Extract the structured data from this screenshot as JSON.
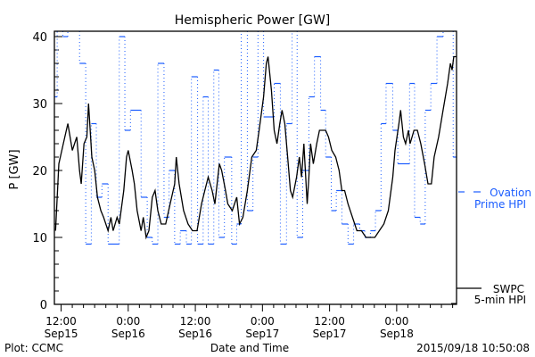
{
  "chart_data": {
    "type": "line",
    "title": "Hemispheric Power [GW]",
    "xlabel": "Date and Time",
    "ylabel": "P [GW]",
    "ylim": [
      0,
      40
    ],
    "yticks": [
      0,
      10,
      20,
      30,
      40
    ],
    "x_units": "hours since 2015-09-15 00:00 UT",
    "xlim": [
      10.8,
      82.7
    ],
    "xticks": [
      {
        "hour": 12,
        "line1": "12:00",
        "line2": "Sep15"
      },
      {
        "hour": 24,
        "line1": "0:00",
        "line2": "Sep16"
      },
      {
        "hour": 36,
        "line1": "12:00",
        "line2": "Sep16"
      },
      {
        "hour": 48,
        "line1": "0:00",
        "line2": "Sep17"
      },
      {
        "hour": 60,
        "line1": "12:00",
        "line2": "Sep17"
      },
      {
        "hour": 72,
        "line1": "0:00",
        "line2": "Sep18"
      }
    ],
    "grid": false,
    "legend_placement": "right-outside",
    "series": [
      {
        "name": "Ovation Prime HPI",
        "legend_line1": "Ovation",
        "legend_line2": "Prime HPI",
        "color": "#1a5cff",
        "style": "step",
        "note": "values of 41 are clipped above the axis top",
        "steps": [
          [
            10.8,
            31
          ],
          [
            11.3,
            41
          ],
          [
            12.3,
            40
          ],
          [
            13.2,
            41
          ],
          [
            15.3,
            36
          ],
          [
            16.4,
            9
          ],
          [
            17.4,
            27
          ],
          [
            18.3,
            16
          ],
          [
            19.3,
            18
          ],
          [
            20.4,
            9
          ],
          [
            22.4,
            40
          ],
          [
            23.4,
            26
          ],
          [
            24.4,
            29
          ],
          [
            26.3,
            16
          ],
          [
            27.4,
            10
          ],
          [
            28.3,
            9
          ],
          [
            29.3,
            36
          ],
          [
            30.4,
            13
          ],
          [
            31.3,
            20
          ],
          [
            32.3,
            9
          ],
          [
            33.3,
            11
          ],
          [
            34.4,
            9
          ],
          [
            35.3,
            34
          ],
          [
            36.4,
            9
          ],
          [
            37.4,
            31
          ],
          [
            38.3,
            9
          ],
          [
            39.3,
            35
          ],
          [
            40.2,
            10
          ],
          [
            41.2,
            22
          ],
          [
            42.5,
            9
          ],
          [
            43.4,
            12
          ],
          [
            44.2,
            41
          ],
          [
            45.3,
            14
          ],
          [
            46.3,
            22
          ],
          [
            47.2,
            41
          ],
          [
            48.2,
            28
          ],
          [
            50.1,
            33
          ],
          [
            51.2,
            9
          ],
          [
            52.3,
            27
          ],
          [
            53.3,
            41
          ],
          [
            54.2,
            10
          ],
          [
            55.2,
            20
          ],
          [
            56.3,
            31
          ],
          [
            57.3,
            37
          ],
          [
            58.4,
            29
          ],
          [
            59.3,
            22
          ],
          [
            60.3,
            14
          ],
          [
            61.2,
            17
          ],
          [
            62.2,
            12
          ],
          [
            63.3,
            9
          ],
          [
            64.3,
            12
          ],
          [
            65.4,
            11
          ],
          [
            66.3,
            10
          ],
          [
            67.3,
            11
          ],
          [
            68.2,
            14
          ],
          [
            69.2,
            27
          ],
          [
            70.1,
            33
          ],
          [
            71.3,
            26
          ],
          [
            72.2,
            21
          ],
          [
            74.3,
            33
          ],
          [
            75.2,
            13
          ],
          [
            76.2,
            12
          ],
          [
            77.1,
            29
          ],
          [
            78.1,
            33
          ],
          [
            79.2,
            40
          ],
          [
            80.3,
            41
          ],
          [
            82.1,
            22
          ]
        ]
      },
      {
        "name": "SWPC 5-min HPI",
        "legend_line1": "SWPC",
        "legend_line2": "5-min HPI",
        "color": "#000000",
        "style": "line",
        "points": [
          [
            11.0,
            11
          ],
          [
            11.6,
            21
          ],
          [
            12.4,
            24
          ],
          [
            13.2,
            27
          ],
          [
            14.0,
            23
          ],
          [
            14.8,
            25
          ],
          [
            15.3,
            20
          ],
          [
            15.6,
            18
          ],
          [
            16.1,
            24
          ],
          [
            16.6,
            25
          ],
          [
            16.9,
            30
          ],
          [
            17.5,
            22
          ],
          [
            18.0,
            20
          ],
          [
            18.5,
            16
          ],
          [
            19.1,
            14
          ],
          [
            19.6,
            13
          ],
          [
            20.4,
            11
          ],
          [
            20.9,
            13
          ],
          [
            21.3,
            11
          ],
          [
            22.0,
            13
          ],
          [
            22.4,
            12
          ],
          [
            23.2,
            17
          ],
          [
            23.7,
            22
          ],
          [
            24.0,
            23
          ],
          [
            24.7,
            20
          ],
          [
            25.1,
            18
          ],
          [
            25.6,
            14
          ],
          [
            26.3,
            11
          ],
          [
            26.7,
            13
          ],
          [
            27.2,
            10
          ],
          [
            27.7,
            11
          ],
          [
            28.3,
            16
          ],
          [
            28.8,
            17
          ],
          [
            29.3,
            14
          ],
          [
            29.9,
            12
          ],
          [
            30.7,
            12
          ],
          [
            31.5,
            15
          ],
          [
            32.3,
            18
          ],
          [
            32.6,
            22
          ],
          [
            33.1,
            18
          ],
          [
            33.9,
            14
          ],
          [
            34.7,
            12
          ],
          [
            35.5,
            11
          ],
          [
            36.3,
            11
          ],
          [
            37.1,
            15
          ],
          [
            37.7,
            17
          ],
          [
            38.3,
            19
          ],
          [
            39.0,
            17
          ],
          [
            39.5,
            15
          ],
          [
            39.9,
            18
          ],
          [
            40.3,
            21
          ],
          [
            40.7,
            20
          ],
          [
            41.4,
            17
          ],
          [
            41.8,
            15
          ],
          [
            42.6,
            14
          ],
          [
            43.4,
            16
          ],
          [
            43.9,
            12
          ],
          [
            44.5,
            13
          ],
          [
            45.3,
            17
          ],
          [
            46.1,
            22
          ],
          [
            46.9,
            23
          ],
          [
            47.4,
            26
          ],
          [
            48.2,
            31
          ],
          [
            48.7,
            36
          ],
          [
            49.0,
            37
          ],
          [
            49.6,
            32
          ],
          [
            50.1,
            26
          ],
          [
            50.6,
            24
          ],
          [
            51.1,
            27
          ],
          [
            51.5,
            29
          ],
          [
            52.0,
            27
          ],
          [
            52.5,
            22
          ],
          [
            53.0,
            17
          ],
          [
            53.4,
            16
          ],
          [
            54.1,
            19
          ],
          [
            54.6,
            22
          ],
          [
            55.0,
            19
          ],
          [
            55.4,
            24
          ],
          [
            56.0,
            15
          ],
          [
            56.3,
            19
          ],
          [
            56.6,
            24
          ],
          [
            57.1,
            21
          ],
          [
            57.7,
            24
          ],
          [
            58.2,
            26
          ],
          [
            59.3,
            26
          ],
          [
            59.8,
            25
          ],
          [
            60.4,
            23
          ],
          [
            61.1,
            22
          ],
          [
            61.7,
            20
          ],
          [
            62.2,
            17
          ],
          [
            62.7,
            17
          ],
          [
            63.3,
            15
          ],
          [
            64.1,
            13
          ],
          [
            64.9,
            11
          ],
          [
            65.7,
            11
          ],
          [
            66.5,
            10
          ],
          [
            68.1,
            10
          ],
          [
            68.9,
            11
          ],
          [
            69.7,
            12
          ],
          [
            70.5,
            14
          ],
          [
            71.3,
            19
          ],
          [
            71.7,
            23
          ],
          [
            72.4,
            27
          ],
          [
            72.7,
            29
          ],
          [
            73.2,
            25
          ],
          [
            73.6,
            24
          ],
          [
            74.1,
            26
          ],
          [
            74.4,
            24
          ],
          [
            75.1,
            26
          ],
          [
            75.7,
            26
          ],
          [
            76.3,
            24
          ],
          [
            77.0,
            21
          ],
          [
            77.6,
            18
          ],
          [
            78.2,
            18
          ],
          [
            78.7,
            22
          ],
          [
            79.5,
            25
          ],
          [
            80.3,
            29
          ],
          [
            81.1,
            33
          ],
          [
            81.6,
            36
          ],
          [
            81.9,
            35
          ],
          [
            82.2,
            37
          ],
          [
            82.7,
            37
          ]
        ]
      }
    ]
  },
  "footer": {
    "left": "Plot: CCMC",
    "center": "Date and Time",
    "right": "2015/09/18 10:50:08"
  }
}
